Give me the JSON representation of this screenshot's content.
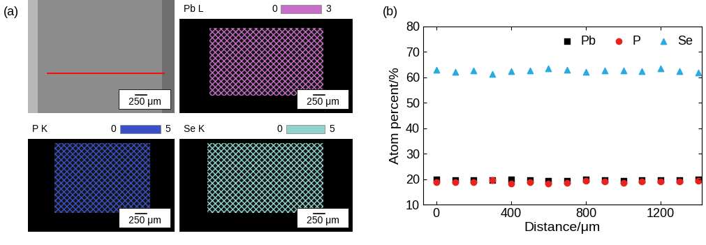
{
  "panel_a": {
    "label": "(a)",
    "sem_scale_bar": "250 μm",
    "maps": [
      {
        "element": "Pb L",
        "scale_min": 0,
        "scale_max": 3,
        "color": "#c86dc8",
        "scale_bar": "250 μm"
      },
      {
        "element": "P K",
        "scale_min": 0,
        "scale_max": 5,
        "color": "#3a50c8",
        "scale_bar": "250 μm"
      },
      {
        "element": "Se K",
        "scale_min": 0,
        "scale_max": 5,
        "color": "#8fd3cb",
        "scale_bar": "250 μm"
      }
    ]
  },
  "chart_data": {
    "type": "scatter",
    "panel_label": "(b)",
    "x_label": "Distance/μm",
    "y_label": "Atom percent/%",
    "x": [
      0,
      100,
      200,
      300,
      400,
      500,
      600,
      700,
      800,
      900,
      1000,
      1100,
      1200,
      1300,
      1400
    ],
    "series": [
      {
        "name": "Pb",
        "color": "#000000",
        "marker": "square",
        "values": [
          19.8,
          19.6,
          19.7,
          19.7,
          19.8,
          19.5,
          19.3,
          19.4,
          20.0,
          19.6,
          19.4,
          19.6,
          19.7,
          19.7,
          19.8
        ]
      },
      {
        "name": "P",
        "color": "#e8231d",
        "marker": "circle",
        "values": [
          18.8,
          18.9,
          18.9,
          19.7,
          18.3,
          18.7,
          18.3,
          18.6,
          19.3,
          19.0,
          18.4,
          19.0,
          19.0,
          19.1,
          19.3
        ]
      },
      {
        "name": "Se",
        "color": "#29abe2",
        "marker": "triangle",
        "values": [
          63.0,
          62.2,
          62.8,
          61.2,
          62.3,
          62.7,
          63.6,
          63.0,
          62.1,
          62.6,
          62.8,
          62.3,
          63.5,
          62.4,
          61.8
        ]
      }
    ],
    "xlim": [
      -70,
      1420
    ],
    "xticks": [
      0,
      400,
      800,
      1200
    ],
    "ylim": [
      10,
      80
    ],
    "yticks": [
      10,
      20,
      30,
      40,
      50,
      60,
      70,
      80
    ],
    "legend": "upper right",
    "grid": false
  }
}
